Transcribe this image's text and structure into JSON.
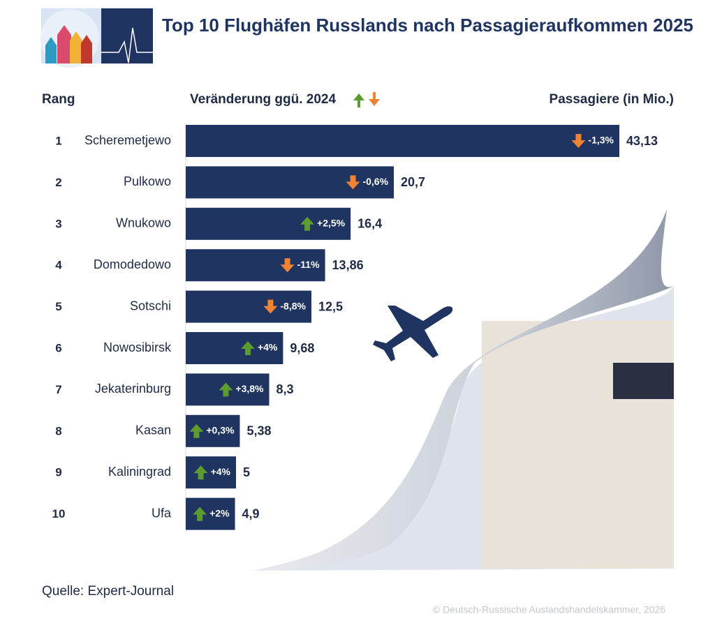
{
  "chart_data": {
    "type": "bar",
    "title": "Top 10 Flughäfen Russlands nach Passagieraufkommen 2025",
    "rank_label": "Rang",
    "change_header": "Veränderung ggü. 2024",
    "value_header": "Passagiere (in Mio.)",
    "ranks": [
      1,
      2,
      3,
      4,
      5,
      6,
      7,
      8,
      9,
      10
    ],
    "categories": [
      "Scheremetjewo",
      "Pulkowo",
      "Wnukowo",
      "Domodedowo",
      "Sotschi",
      "Nowosibirsk",
      "Jekaterinburg",
      "Kasan",
      "Kaliningrad",
      "Ufa"
    ],
    "values": [
      43.13,
      20.7,
      16.4,
      13.86,
      12.5,
      9.68,
      8.3,
      5.38,
      5,
      4.9
    ],
    "value_labels": [
      "43,13",
      "20,7",
      "16,4",
      "13,86",
      "12,5",
      "9,68",
      "8,3",
      "5,38",
      "5",
      "4,9"
    ],
    "changes": [
      -1.3,
      -0.6,
      2.5,
      -11,
      -8.8,
      4,
      3.8,
      0.3,
      4,
      2
    ],
    "change_labels": [
      "-1,3%",
      "-0,6%",
      "+2,5%",
      "-11%",
      "-8,8%",
      "+4%",
      "+3,8%",
      "+0,3%",
      "+4%",
      "+2%"
    ],
    "color": "#1f3461",
    "up_color": "#5b9b2f",
    "down_color": "#f08234",
    "source": "Quelle: Expert-Journal",
    "copyright": "© Deutsch-Russische Auslandshandelskammer, 2026"
  }
}
